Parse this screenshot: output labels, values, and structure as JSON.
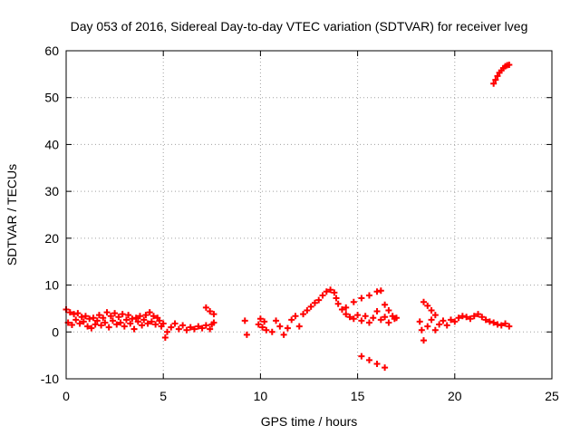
{
  "chart_data": {
    "type": "scatter",
    "title": "Day 053 of 2016, Sidereal Day-to-day VTEC variation (SDTVAR) for receiver lveg",
    "xlabel": "GPS time / hours",
    "ylabel": "SDTVAR / TECUs",
    "xlim": [
      0,
      25
    ],
    "ylim": [
      -10,
      60
    ],
    "xticks": [
      0,
      5,
      10,
      15,
      20,
      25
    ],
    "yticks": [
      -10,
      0,
      10,
      20,
      30,
      40,
      50,
      60
    ],
    "grid": true,
    "marker": "+",
    "marker_color": "#ff0000",
    "series": [
      {
        "name": "SDTVAR",
        "points": [
          [
            0.0,
            4.8
          ],
          [
            0.1,
            2.0
          ],
          [
            0.2,
            4.2
          ],
          [
            0.3,
            1.5
          ],
          [
            0.4,
            3.8
          ],
          [
            0.5,
            2.6
          ],
          [
            0.6,
            4.0
          ],
          [
            0.7,
            1.8
          ],
          [
            0.8,
            3.2
          ],
          [
            0.9,
            2.2
          ],
          [
            1.0,
            3.4
          ],
          [
            1.1,
            1.2
          ],
          [
            1.2,
            2.8
          ],
          [
            1.3,
            0.8
          ],
          [
            1.4,
            3.0
          ],
          [
            1.5,
            1.6
          ],
          [
            1.6,
            2.4
          ],
          [
            1.7,
            3.6
          ],
          [
            1.8,
            1.4
          ],
          [
            1.9,
            3.0
          ],
          [
            2.0,
            2.0
          ],
          [
            2.1,
            4.2
          ],
          [
            2.2,
            1.0
          ],
          [
            2.3,
            3.4
          ],
          [
            2.4,
            2.4
          ],
          [
            2.5,
            4.0
          ],
          [
            2.6,
            1.6
          ],
          [
            2.7,
            3.2
          ],
          [
            2.8,
            2.0
          ],
          [
            2.9,
            3.8
          ],
          [
            3.0,
            1.2
          ],
          [
            3.1,
            2.6
          ],
          [
            3.2,
            3.6
          ],
          [
            3.3,
            1.8
          ],
          [
            3.4,
            2.8
          ],
          [
            3.5,
            0.6
          ],
          [
            3.6,
            3.0
          ],
          [
            3.7,
            2.2
          ],
          [
            3.8,
            3.4
          ],
          [
            3.9,
            1.4
          ],
          [
            4.0,
            2.6
          ],
          [
            4.1,
            3.6
          ],
          [
            4.2,
            1.8
          ],
          [
            4.3,
            4.2
          ],
          [
            4.4,
            2.2
          ],
          [
            4.5,
            3.4
          ],
          [
            4.6,
            1.6
          ],
          [
            4.7,
            3.0
          ],
          [
            4.8,
            2.4
          ],
          [
            4.9,
            1.2
          ],
          [
            5.0,
            1.8
          ],
          [
            5.1,
            -1.2
          ],
          [
            5.2,
            0.0
          ],
          [
            5.4,
            1.0
          ],
          [
            5.6,
            1.8
          ],
          [
            5.8,
            0.6
          ],
          [
            6.0,
            1.4
          ],
          [
            6.2,
            0.4
          ],
          [
            6.4,
            1.0
          ],
          [
            6.6,
            0.6
          ],
          [
            6.8,
            1.2
          ],
          [
            7.0,
            0.8
          ],
          [
            7.2,
            1.4
          ],
          [
            7.4,
            0.6
          ],
          [
            7.5,
            1.6
          ],
          [
            7.6,
            2.0
          ],
          [
            7.2,
            5.2
          ],
          [
            7.4,
            4.4
          ],
          [
            7.6,
            3.8
          ],
          [
            9.2,
            2.4
          ],
          [
            9.3,
            -0.6
          ],
          [
            9.9,
            1.6
          ],
          [
            10.0,
            2.8
          ],
          [
            10.1,
            1.0
          ],
          [
            10.2,
            2.2
          ],
          [
            10.3,
            0.4
          ],
          [
            10.6,
            0.0
          ],
          [
            10.8,
            2.4
          ],
          [
            11.0,
            1.2
          ],
          [
            11.2,
            -0.6
          ],
          [
            11.4,
            0.8
          ],
          [
            11.6,
            2.6
          ],
          [
            11.8,
            3.4
          ],
          [
            12.0,
            1.2
          ],
          [
            12.2,
            3.8
          ],
          [
            12.4,
            4.6
          ],
          [
            12.6,
            5.4
          ],
          [
            12.8,
            6.2
          ],
          [
            13.0,
            6.8
          ],
          [
            13.2,
            7.8
          ],
          [
            13.4,
            8.6
          ],
          [
            13.6,
            9.0
          ],
          [
            13.8,
            8.4
          ],
          [
            13.9,
            7.2
          ],
          [
            14.0,
            6.0
          ],
          [
            14.2,
            4.8
          ],
          [
            14.4,
            3.8
          ],
          [
            14.6,
            3.2
          ],
          [
            14.8,
            2.8
          ],
          [
            15.0,
            3.6
          ],
          [
            15.2,
            2.4
          ],
          [
            15.4,
            3.4
          ],
          [
            15.6,
            2.0
          ],
          [
            15.8,
            3.0
          ],
          [
            16.0,
            4.4
          ],
          [
            16.2,
            2.6
          ],
          [
            16.4,
            3.2
          ],
          [
            16.6,
            2.0
          ],
          [
            14.4,
            5.2
          ],
          [
            14.8,
            6.4
          ],
          [
            15.2,
            7.2
          ],
          [
            15.6,
            7.8
          ],
          [
            16.0,
            8.6
          ],
          [
            16.2,
            8.8
          ],
          [
            16.4,
            5.8
          ],
          [
            16.6,
            4.6
          ],
          [
            16.8,
            3.4
          ],
          [
            16.9,
            2.8
          ],
          [
            17.0,
            3.0
          ],
          [
            15.2,
            -5.2
          ],
          [
            15.6,
            -6.0
          ],
          [
            16.0,
            -6.8
          ],
          [
            16.4,
            -7.6
          ],
          [
            18.4,
            6.4
          ],
          [
            18.6,
            5.6
          ],
          [
            18.8,
            4.6
          ],
          [
            19.0,
            3.6
          ],
          [
            18.2,
            2.2
          ],
          [
            18.3,
            0.4
          ],
          [
            18.4,
            -1.8
          ],
          [
            18.6,
            1.2
          ],
          [
            18.8,
            2.6
          ],
          [
            19.0,
            0.4
          ],
          [
            19.2,
            1.6
          ],
          [
            19.4,
            2.4
          ],
          [
            19.6,
            1.4
          ],
          [
            19.8,
            2.6
          ],
          [
            20.0,
            2.2
          ],
          [
            20.2,
            3.0
          ],
          [
            20.4,
            3.4
          ],
          [
            20.6,
            3.2
          ],
          [
            20.8,
            2.8
          ],
          [
            21.0,
            3.4
          ],
          [
            21.2,
            3.8
          ],
          [
            21.4,
            3.2
          ],
          [
            21.6,
            2.6
          ],
          [
            21.8,
            2.2
          ],
          [
            22.0,
            2.0
          ],
          [
            22.2,
            1.6
          ],
          [
            22.4,
            1.4
          ],
          [
            22.6,
            1.8
          ],
          [
            22.8,
            1.2
          ],
          [
            22.0,
            53.0
          ],
          [
            22.1,
            53.8
          ],
          [
            22.2,
            54.6
          ],
          [
            22.3,
            55.3
          ],
          [
            22.4,
            55.8
          ],
          [
            22.5,
            56.3
          ],
          [
            22.6,
            56.7
          ],
          [
            22.7,
            56.9
          ],
          [
            22.8,
            57.0
          ]
        ]
      }
    ]
  }
}
